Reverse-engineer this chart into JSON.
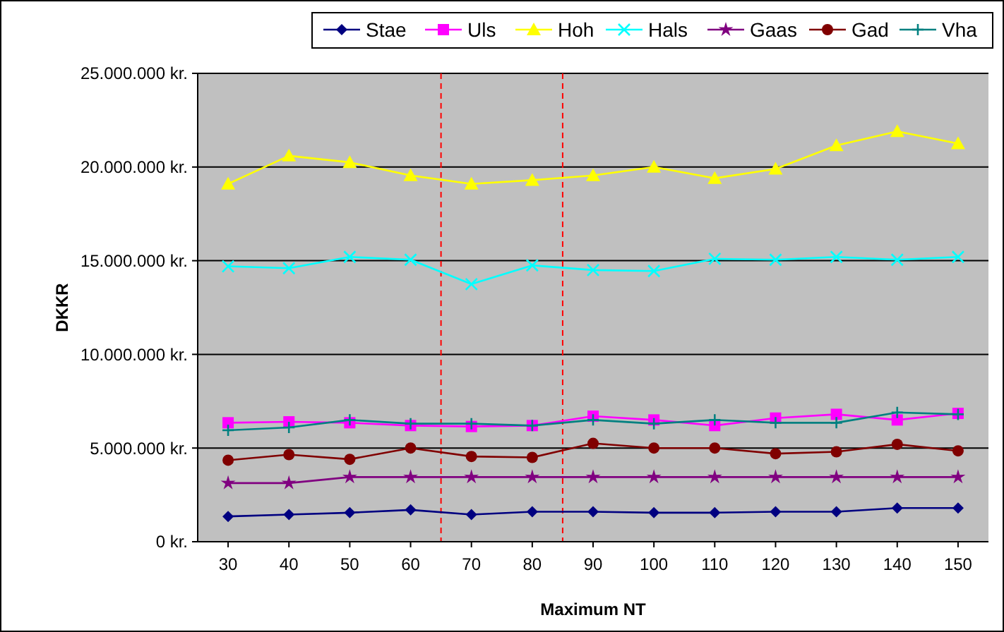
{
  "chart_data": {
    "type": "line",
    "xlabel": "Maximum NT",
    "ylabel": "DKKR",
    "x": [
      30,
      40,
      50,
      60,
      70,
      80,
      90,
      100,
      110,
      120,
      130,
      140,
      150
    ],
    "xlim": [
      25,
      155
    ],
    "xticks": [
      30,
      40,
      50,
      60,
      70,
      80,
      90,
      100,
      110,
      120,
      130,
      140,
      150
    ],
    "ylim": [
      0,
      25000000
    ],
    "yticks": [
      {
        "value": 0,
        "label": "0 kr."
      },
      {
        "value": 5000000,
        "label": "5.000.000 kr."
      },
      {
        "value": 10000000,
        "label": "10.000.000 kr."
      },
      {
        "value": 15000000,
        "label": "15.000.000 kr."
      },
      {
        "value": 20000000,
        "label": "20.000.000 kr."
      },
      {
        "value": 25000000,
        "label": "25.000.000 kr."
      }
    ],
    "grid": "y",
    "legend": "top right",
    "series": [
      {
        "name": "Stae",
        "color": "#000080",
        "marker": "diamond",
        "values": [
          1350000,
          1450000,
          1550000,
          1700000,
          1450000,
          1600000,
          1600000,
          1550000,
          1550000,
          1600000,
          1600000,
          1800000,
          1800000
        ]
      },
      {
        "name": "Uls",
        "color": "#ff00ff",
        "marker": "square",
        "values": [
          6350000,
          6400000,
          6350000,
          6200000,
          6150000,
          6200000,
          6700000,
          6500000,
          6200000,
          6600000,
          6800000,
          6500000,
          6850000
        ]
      },
      {
        "name": "Hoh",
        "color": "#ffff00",
        "marker": "triangle",
        "values": [
          19100000,
          20600000,
          20250000,
          19550000,
          19100000,
          19300000,
          19550000,
          20000000,
          19400000,
          19900000,
          21150000,
          21900000,
          21250000
        ]
      },
      {
        "name": "Hals",
        "color": "#00ffff",
        "marker": "cross",
        "values": [
          14700000,
          14600000,
          15200000,
          15050000,
          13750000,
          14750000,
          14500000,
          14450000,
          15100000,
          15050000,
          15200000,
          15050000,
          15200000
        ]
      },
      {
        "name": "Gaas",
        "color": "#800080",
        "marker": "star",
        "values": [
          3130000,
          3130000,
          3450000,
          3450000,
          3450000,
          3450000,
          3450000,
          3450000,
          3450000,
          3450000,
          3450000,
          3450000,
          3450000
        ]
      },
      {
        "name": "Gad",
        "color": "#800000",
        "marker": "circle",
        "values": [
          4350000,
          4650000,
          4400000,
          5000000,
          4550000,
          4500000,
          5250000,
          5000000,
          5000000,
          4700000,
          4800000,
          5200000,
          4850000
        ]
      },
      {
        "name": "Vha",
        "color": "#008080",
        "marker": "plus",
        "values": [
          5950000,
          6100000,
          6500000,
          6300000,
          6300000,
          6200000,
          6500000,
          6300000,
          6500000,
          6350000,
          6350000,
          6900000,
          6800000
        ]
      }
    ],
    "ref_lines": [
      {
        "axis": "x",
        "value": 65,
        "color": "#ff0000",
        "line_style": "dashed"
      },
      {
        "axis": "x",
        "value": 85,
        "color": "#ff0000",
        "line_style": "dashed"
      }
    ]
  }
}
